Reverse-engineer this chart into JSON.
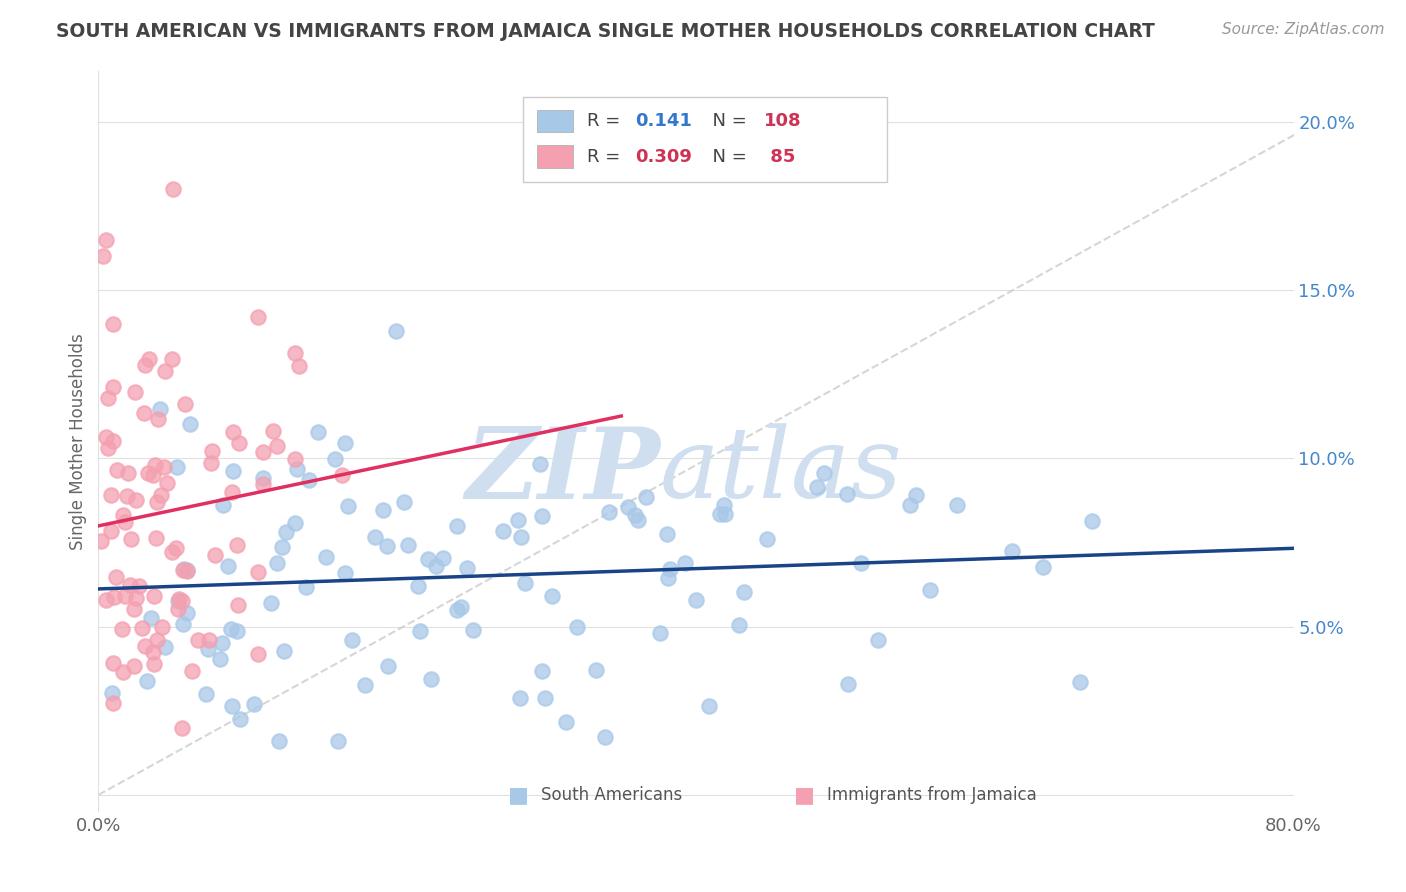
{
  "title": "SOUTH AMERICAN VS IMMIGRANTS FROM JAMAICA SINGLE MOTHER HOUSEHOLDS CORRELATION CHART",
  "source": "Source: ZipAtlas.com",
  "ylabel": "Single Mother Households",
  "xlim": [
    0.0,
    0.8
  ],
  "ylim": [
    -0.005,
    0.215
  ],
  "yticks": [
    0.05,
    0.1,
    0.15,
    0.2
  ],
  "ytick_labels": [
    "5.0%",
    "10.0%",
    "15.0%",
    "20.0%"
  ],
  "south_americans_R": 0.141,
  "south_americans_N": 108,
  "jamaica_R": 0.309,
  "jamaica_N": 85,
  "scatter_blue_color": "#a8c8e8",
  "scatter_pink_color": "#f4a0b0",
  "line_blue_color": "#1a4488",
  "line_pink_color": "#e03060",
  "trend_line_color": "#cccccc",
  "watermark_zip_color": "#d0dff0",
  "watermark_atlas_color": "#d0dff0",
  "background_color": "#ffffff",
  "grid_color": "#e0e0e0",
  "legend_blue_color": "#a8c8e8",
  "legend_pink_color": "#f4a0b0",
  "legend_text_color": "#666666",
  "legend_R_blue_color": "#3377cc",
  "legend_N_color": "#cc3355",
  "legend_R_pink_color": "#cc3355",
  "bottom_legend_blue": "#a8c8e8",
  "bottom_legend_pink": "#f4a0b0"
}
